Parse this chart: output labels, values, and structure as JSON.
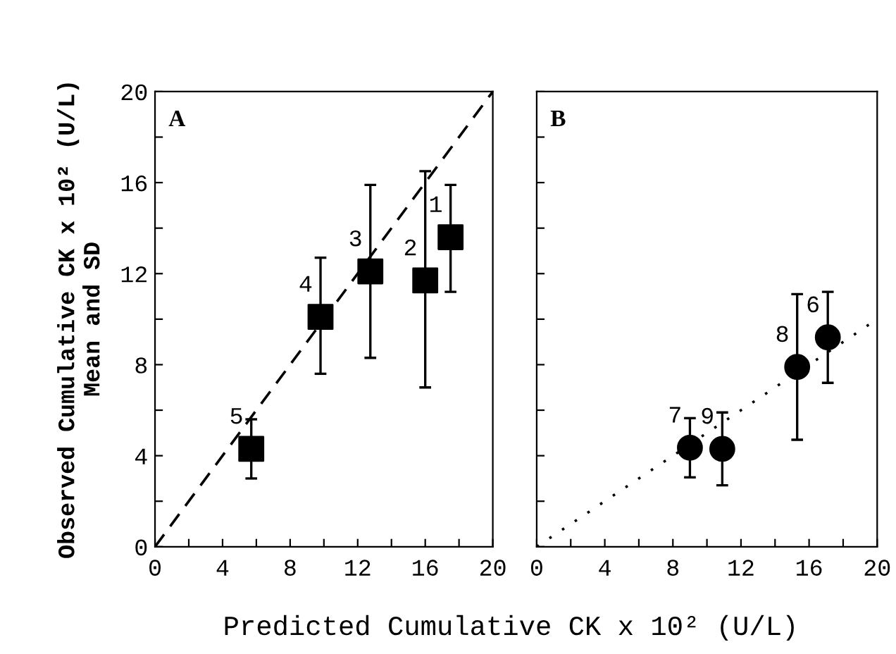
{
  "chart_data": [
    {
      "type": "scatter",
      "ylabel": "Observed Cumulative CK x 10² (U/L)\nMean and SD",
      "xlabel": "Predicted Cumulative CK x 10² (U/L)",
      "annotations": [
        "A",
        {
          "text": "1",
          "x": 17.5,
          "y": 13.6
        },
        {
          "text": "2",
          "x": 16.0,
          "y": 11.7
        },
        {
          "text": "3",
          "x": 12.75,
          "y": 12.1
        },
        {
          "text": "4",
          "x": 9.8,
          "y": 10.1
        },
        {
          "text": "5",
          "x": 5.7,
          "y": 4.3
        }
      ],
      "xlim": [
        0,
        20
      ],
      "ylim": [
        0,
        20
      ],
      "xticks": [
        0,
        {
          "value": 2,
          "label": null
        },
        4,
        {
          "value": 6,
          "label": null
        },
        8,
        {
          "value": 10,
          "label": null
        },
        12,
        {
          "value": 14,
          "label": null
        },
        16,
        {
          "value": 18,
          "label": null
        },
        20
      ],
      "yticks": [
        0,
        {
          "value": 2,
          "label": null
        },
        4,
        {
          "value": 6,
          "label": null
        },
        8,
        {
          "value": 10,
          "label": null
        },
        12,
        {
          "value": 14,
          "label": null
        },
        16,
        {
          "value": 18,
          "label": null
        },
        20
      ],
      "grid": false,
      "legend": false,
      "series": [
        {
          "color": "#000000",
          "marker": "square",
          "x": [
            17.5,
            16.0,
            12.75,
            9.8,
            5.7
          ],
          "values": [
            13.6,
            11.7,
            12.1,
            10.1,
            4.3
          ],
          "errors": [
            [
              11.2,
              15.9
            ],
            [
              7.0,
              16.5
            ],
            [
              8.3,
              15.9
            ],
            [
              7.6,
              12.7
            ],
            [
              3.0,
              5.6
            ]
          ]
        },
        {
          "type": "line",
          "color": "#000000",
          "marker": "none",
          "line_style": "dashed",
          "x": [
            0,
            20
          ],
          "values": [
            0,
            20
          ]
        }
      ]
    },
    {
      "type": "scatter",
      "annotations": [
        "B",
        {
          "text": "6",
          "x": 17.1,
          "y": 9.2
        },
        {
          "text": "7",
          "x": 9.0,
          "y": 4.35
        },
        {
          "text": "8",
          "x": 15.3,
          "y": 7.9
        },
        {
          "text": "9",
          "x": 10.9,
          "y": 4.3
        }
      ],
      "xlim": [
        0,
        20
      ],
      "ylim": [
        0,
        20
      ],
      "tick_labels": "x",
      "xticks": [
        0,
        {
          "value": 2,
          "label": null
        },
        4,
        {
          "value": 6,
          "label": null
        },
        8,
        {
          "value": 10,
          "label": null
        },
        12,
        {
          "value": 14,
          "label": null
        },
        16,
        {
          "value": 18,
          "label": null
        },
        20
      ],
      "yticks": [
        0,
        {
          "value": 2,
          "label": null
        },
        4,
        {
          "value": 6,
          "label": null
        },
        8,
        {
          "value": 10,
          "label": null
        },
        12,
        {
          "value": 14,
          "label": null
        },
        16,
        {
          "value": 18,
          "label": null
        },
        20
      ],
      "grid": false,
      "legend": false,
      "series": [
        {
          "color": "#000000",
          "marker": "circle",
          "x": [
            17.1,
            9.0,
            15.3,
            10.9
          ],
          "values": [
            9.2,
            4.35,
            7.9,
            4.3
          ],
          "errors": [
            [
              7.2,
              11.2
            ],
            [
              3.05,
              5.65
            ],
            [
              4.7,
              11.1
            ],
            [
              2.7,
              5.9
            ]
          ]
        },
        {
          "type": "line",
          "color": "#000000",
          "marker": "none",
          "line_style": "dotted",
          "x": [
            0,
            20
          ],
          "values": [
            0,
            10
          ]
        }
      ]
    }
  ]
}
